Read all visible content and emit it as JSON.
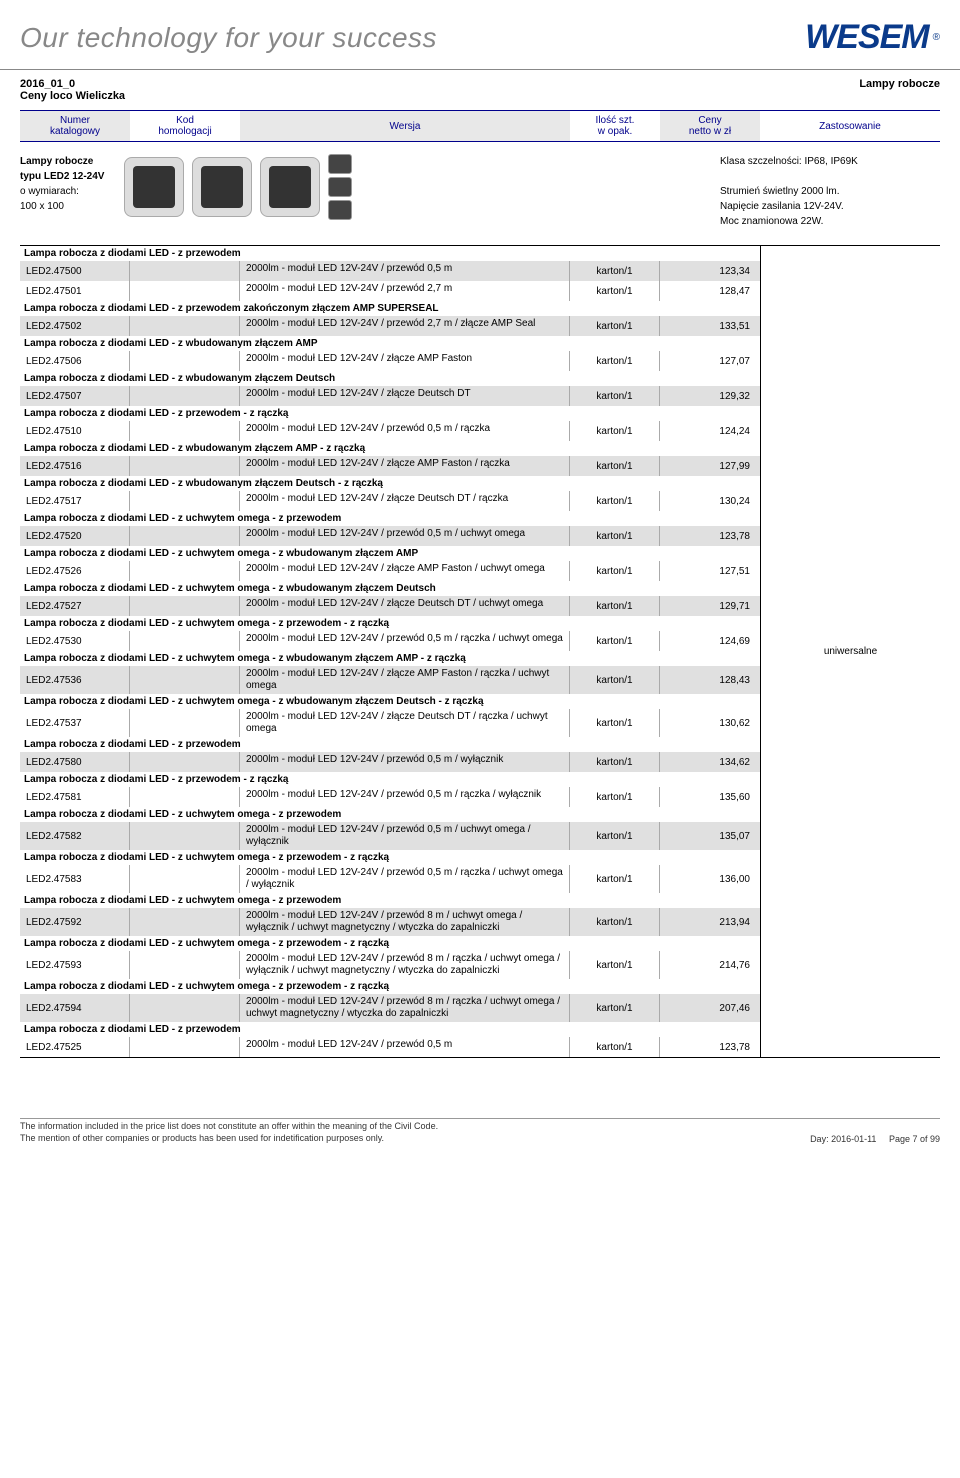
{
  "banner": {
    "tagline": "Our technology for your success",
    "logo_text": "WESEM",
    "logo_r": "®"
  },
  "doc_header": {
    "left_line1": "2016_01_0",
    "left_line2": "Ceny loco Wieliczka",
    "right": "Lampy robocze"
  },
  "col_headers": {
    "numer_l1": "Numer",
    "numer_l2": "katalogowy",
    "kod_l1": "Kod",
    "kod_l2": "homologacji",
    "wersja": "Wersja",
    "ilosc_l1": "Ilość szt.",
    "ilosc_l2": "w opak.",
    "ceny_l1": "Ceny",
    "ceny_l2": "netto w zł",
    "zast": "Zastosowanie"
  },
  "product": {
    "title": "Lampy robocze",
    "l2": "typu LED2 12-24V",
    "l3": "o wymiarach:",
    "l4": "100 x 100",
    "r1": "Klasa szczelności: IP68, IP69K",
    "r2": "Strumień świetlny 2000 lm.",
    "r3": "Napięcie zasilania 12V-24V.",
    "r4": "Moc znamionowa 22W."
  },
  "universal": "uniwersalne",
  "colors": {
    "header_bg_alt": "#e8e8e8",
    "row_alt_bg": "#e0e0e0",
    "border": "#000000",
    "header_text": "#00008b",
    "logo": "#0a3a8a"
  },
  "sections": [
    {
      "title": "Lampa robocza z diodami LED - z przewodem",
      "rows": [
        {
          "code": "LED2.47500",
          "version": "2000lm - moduł LED 12V-24V / przewód 0,5 m",
          "pack": "karton/1",
          "price": "123,34",
          "alt": true
        },
        {
          "code": "LED2.47501",
          "version": "2000lm - moduł LED 12V-24V / przewód 2,7 m",
          "pack": "karton/1",
          "price": "128,47",
          "alt": false
        }
      ]
    },
    {
      "title": "Lampa robocza z diodami LED - z przewodem zakończonym złączem AMP SUPERSEAL",
      "rows": [
        {
          "code": "LED2.47502",
          "version": "2000lm - moduł LED 12V-24V / przewód 2,7 m / złącze AMP Seal",
          "pack": "karton/1",
          "price": "133,51",
          "alt": true
        }
      ]
    },
    {
      "title": "Lampa robocza z diodami LED - z wbudowanym złączem AMP",
      "rows": [
        {
          "code": "LED2.47506",
          "version": "2000lm - moduł LED 12V-24V / złącze AMP Faston",
          "pack": "karton/1",
          "price": "127,07",
          "alt": false
        }
      ]
    },
    {
      "title": "Lampa robocza z diodami LED - z wbudowanym złączem Deutsch",
      "rows": [
        {
          "code": "LED2.47507",
          "version": "2000lm - moduł LED 12V-24V / złącze Deutsch DT",
          "pack": "karton/1",
          "price": "129,32",
          "alt": true
        }
      ]
    },
    {
      "title": "Lampa robocza z diodami LED - z przewodem - z rączką",
      "rows": [
        {
          "code": "LED2.47510",
          "version": "2000lm - moduł LED 12V-24V / przewód 0,5 m / rączka",
          "pack": "karton/1",
          "price": "124,24",
          "alt": false
        }
      ]
    },
    {
      "title": "Lampa robocza z diodami LED - z wbudowanym złączem AMP - z rączką",
      "rows": [
        {
          "code": "LED2.47516",
          "version": "2000lm - moduł LED 12V-24V / złącze AMP Faston / rączka",
          "pack": "karton/1",
          "price": "127,99",
          "alt": true
        }
      ]
    },
    {
      "title": "Lampa robocza z diodami LED - z wbudowanym złączem Deutsch - z rączką",
      "rows": [
        {
          "code": "LED2.47517",
          "version": "2000lm - moduł LED 12V-24V / złącze Deutsch DT / rączka",
          "pack": "karton/1",
          "price": "130,24",
          "alt": false
        }
      ]
    },
    {
      "title": "Lampa robocza z diodami LED - z uchwytem omega - z przewodem",
      "rows": [
        {
          "code": "LED2.47520",
          "version": "2000lm - moduł LED 12V-24V / przewód 0,5 m / uchwyt omega",
          "pack": "karton/1",
          "price": "123,78",
          "alt": true
        }
      ]
    },
    {
      "title": "Lampa robocza z diodami LED - z uchwytem omega - z wbudowanym złączem AMP",
      "rows": [
        {
          "code": "LED2.47526",
          "version": "2000lm - moduł LED 12V-24V / złącze AMP Faston / uchwyt omega",
          "pack": "karton/1",
          "price": "127,51",
          "alt": false
        }
      ]
    },
    {
      "title": "Lampa robocza z diodami LED - z uchwytem omega - z wbudowanym złączem Deutsch",
      "rows": [
        {
          "code": "LED2.47527",
          "version": "2000lm - moduł LED 12V-24V / złącze Deutsch DT / uchwyt omega",
          "pack": "karton/1",
          "price": "129,71",
          "alt": true
        }
      ]
    },
    {
      "title": "Lampa robocza z diodami LED - z uchwytem omega - z przewodem - z rączką",
      "rows": [
        {
          "code": "LED2.47530",
          "version": "2000lm - moduł LED 12V-24V / przewód 0,5 m / rączka / uchwyt omega",
          "pack": "karton/1",
          "price": "124,69",
          "alt": false
        }
      ]
    },
    {
      "title": "Lampa robocza z diodami LED - z uchwytem omega - z wbudowanym złączem AMP - z rączką",
      "rows": [
        {
          "code": "LED2.47536",
          "version": "2000lm - moduł LED 12V-24V / złącze AMP Faston / rączka / uchwyt omega",
          "pack": "karton/1",
          "price": "128,43",
          "alt": true
        }
      ]
    },
    {
      "title": "Lampa robocza z diodami LED - z uchwytem omega - z wbudowanym złączem Deutsch - z rączką",
      "rows": [
        {
          "code": "LED2.47537",
          "version": "2000lm - moduł LED 12V-24V / złącze Deutsch DT / rączka / uchwyt omega",
          "pack": "karton/1",
          "price": "130,62",
          "alt": false
        }
      ]
    },
    {
      "title": "Lampa robocza z diodami LED - z przewodem",
      "rows": [
        {
          "code": "LED2.47580",
          "version": "2000lm - moduł LED 12V-24V / przewód 0,5 m / wyłącznik",
          "pack": "karton/1",
          "price": "134,62",
          "alt": true
        }
      ]
    },
    {
      "title": "Lampa robocza z diodami LED - z przewodem - z rączką",
      "rows": [
        {
          "code": "LED2.47581",
          "version": "2000lm - moduł LED 12V-24V / przewód 0,5 m / rączka / wyłącznik",
          "pack": "karton/1",
          "price": "135,60",
          "alt": false
        }
      ]
    },
    {
      "title": "Lampa robocza z diodami LED - z uchwytem omega - z przewodem",
      "rows": [
        {
          "code": "LED2.47582",
          "version": "2000lm - moduł LED 12V-24V / przewód 0,5 m / uchwyt omega / wyłącznik",
          "pack": "karton/1",
          "price": "135,07",
          "alt": true
        }
      ]
    },
    {
      "title": "Lampa robocza z diodami LED - z uchwytem omega - z przewodem - z rączką",
      "rows": [
        {
          "code": "LED2.47583",
          "version": "2000lm - moduł LED 12V-24V / przewód 0,5 m / rączka / uchwyt omega / wyłącznik",
          "pack": "karton/1",
          "price": "136,00",
          "alt": false
        }
      ]
    },
    {
      "title": "Lampa robocza z diodami LED - z uchwytem omega - z przewodem",
      "rows": [
        {
          "code": "LED2.47592",
          "version": "2000lm - moduł LED 12V-24V / przewód 8 m / uchwyt omega / wyłącznik / uchwyt magnetyczny / wtyczka do zapalniczki",
          "pack": "karton/1",
          "price": "213,94",
          "alt": true
        }
      ]
    },
    {
      "title": "Lampa robocza z diodami LED - z uchwytem omega - z przewodem - z rączką",
      "rows": [
        {
          "code": "LED2.47593",
          "version": "2000lm - moduł LED 12V-24V / przewód 8 m / rączka / uchwyt omega / wyłącznik / uchwyt magnetyczny / wtyczka do zapalniczki",
          "pack": "karton/1",
          "price": "214,76",
          "alt": false
        }
      ]
    },
    {
      "title": "Lampa robocza z diodami LED - z uchwytem omega - z przewodem - z rączką",
      "rows": [
        {
          "code": "LED2.47594",
          "version": "2000lm - moduł LED 12V-24V / przewód 8 m / rączka / uchwyt omega / uchwyt magnetyczny / wtyczka do zapalniczki",
          "pack": "karton/1",
          "price": "207,46",
          "alt": true
        }
      ]
    },
    {
      "title": "Lampa robocza z diodami LED - z przewodem",
      "rows": [
        {
          "code": "LED2.47525",
          "version": "2000lm - moduł LED 12V-24V / przewód 0,5 m",
          "pack": "karton/1",
          "price": "123,78",
          "alt": false
        }
      ]
    }
  ],
  "footer": {
    "l1": "The information included in the price list does not constitute an offer within the meaning of the Civil Code.",
    "l2": "The mention of other companies or products has been used for indetification purposes only.",
    "day_label": "Day: 2016-01-11",
    "page_label": "Page 7 of  99"
  }
}
